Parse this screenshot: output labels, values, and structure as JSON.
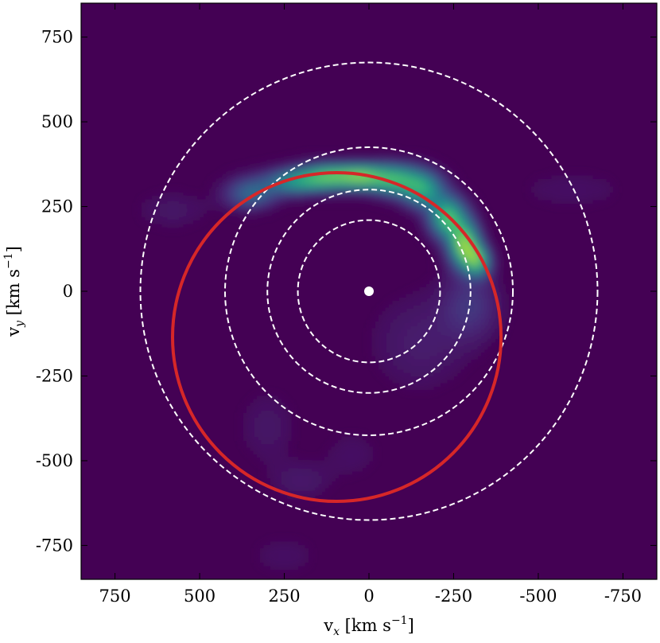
{
  "chart_data": {
    "type": "heatmap",
    "title": "",
    "xlabel": "v_x [km s^-1]",
    "ylabel": "v_y [km s^-1]",
    "xlabel_parts": {
      "base": "v",
      "sub": "x",
      "unit": " [km s",
      "exp": "−1",
      "close": "]"
    },
    "ylabel_parts": {
      "base": "v",
      "sub": "y",
      "unit": " [km s",
      "exp": "−1",
      "close": "]"
    },
    "xlim": [
      850,
      -850
    ],
    "ylim": [
      -850,
      850
    ],
    "xticks": [
      750,
      500,
      250,
      0,
      -250,
      -500,
      -750
    ],
    "yticks": [
      750,
      500,
      250,
      0,
      -250,
      -500,
      -750
    ],
    "xtick_labels": [
      "750",
      "500",
      "250",
      "0",
      "-250",
      "-500",
      "-750"
    ],
    "ytick_labels": [
      "750",
      "500",
      "250",
      "0",
      "-250",
      "-500",
      "-750"
    ],
    "colormap": "viridis",
    "background_color": "#440154",
    "intensity_blobs": [
      {
        "x": 350,
        "y": 290,
        "sx": 50,
        "sy": 30,
        "amp": 0.35
      },
      {
        "x": 220,
        "y": 325,
        "sx": 60,
        "sy": 25,
        "amp": 0.5
      },
      {
        "x": 120,
        "y": 340,
        "sx": 55,
        "sy": 25,
        "amp": 0.6
      },
      {
        "x": 20,
        "y": 340,
        "sx": 50,
        "sy": 25,
        "amp": 0.65
      },
      {
        "x": -80,
        "y": 330,
        "sx": 50,
        "sy": 30,
        "amp": 0.6
      },
      {
        "x": -160,
        "y": 300,
        "sx": 40,
        "sy": 35,
        "amp": 0.55
      },
      {
        "x": -230,
        "y": 220,
        "sx": 35,
        "sy": 40,
        "amp": 0.7
      },
      {
        "x": -280,
        "y": 140,
        "sx": 30,
        "sy": 45,
        "amp": 0.8
      },
      {
        "x": -320,
        "y": 90,
        "sx": 25,
        "sy": 30,
        "amp": 0.6
      },
      {
        "x": -300,
        "y": -40,
        "sx": 60,
        "sy": 70,
        "amp": 0.15
      },
      {
        "x": -150,
        "y": -150,
        "sx": 100,
        "sy": 100,
        "amp": 0.08
      },
      {
        "x": 580,
        "y": 240,
        "sx": 80,
        "sy": 40,
        "amp": 0.06
      },
      {
        "x": -600,
        "y": 300,
        "sx": 120,
        "sy": 40,
        "amp": 0.05
      },
      {
        "x": 300,
        "y": -400,
        "sx": 60,
        "sy": 80,
        "amp": 0.06
      },
      {
        "x": 200,
        "y": -560,
        "sx": 60,
        "sy": 40,
        "amp": 0.07
      },
      {
        "x": 250,
        "y": -780,
        "sx": 70,
        "sy": 40,
        "amp": 0.05
      },
      {
        "x": 50,
        "y": -480,
        "sx": 60,
        "sy": 50,
        "amp": 0.05
      }
    ],
    "dashed_circles": [
      {
        "cx": 0,
        "cy": 0,
        "r": 210,
        "color": "#ffffff"
      },
      {
        "cx": 0,
        "cy": 0,
        "r": 300,
        "color": "#ffffff"
      },
      {
        "cx": 0,
        "cy": 0,
        "r": 425,
        "color": "#ffffff"
      },
      {
        "cx": 0,
        "cy": 0,
        "r": 675,
        "color": "#ffffff"
      }
    ],
    "solid_circle": {
      "cx": 95,
      "cy": -135,
      "r": 485,
      "color": "#d62728"
    },
    "origin_marker": {
      "x": 0,
      "y": 0,
      "color": "#ffffff"
    }
  }
}
